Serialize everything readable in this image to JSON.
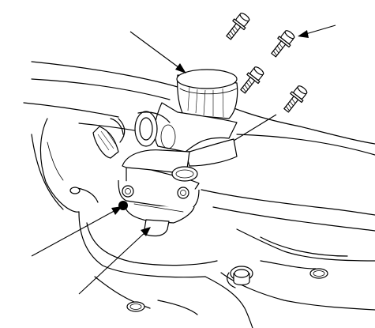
{
  "figure": {
    "background": "#ffffff",
    "line_color": "#000000",
    "callout_arrow_count": 5,
    "callouts": [
      {
        "points_to": "mount-insulator"
      },
      {
        "points_to": "mount-bolt"
      },
      {
        "points_to": "through-bolt-hole"
      },
      {
        "points_to": "bracket-tab"
      },
      {
        "points_to": "subframe-edge"
      }
    ]
  }
}
